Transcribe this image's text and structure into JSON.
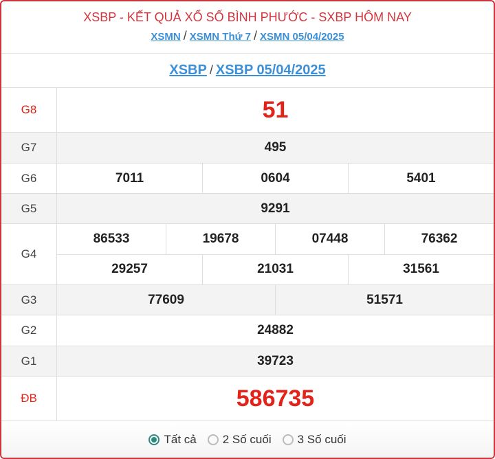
{
  "header": {
    "title": "XSBP - KẾT QUẢ XỔ SỐ BÌNH PHƯỚC - SXBP HÔM NAY",
    "breadcrumbs": [
      "XSMN",
      "XSMN Thứ 7",
      "XSMN 05/04/2025"
    ],
    "separator": "/"
  },
  "subheader": {
    "links": [
      "XSBP",
      "XSBP 05/04/2025"
    ],
    "separator": "/"
  },
  "prizes": [
    {
      "label": "G8",
      "lines": [
        [
          "51"
        ]
      ]
    },
    {
      "label": "G7",
      "lines": [
        [
          "495"
        ]
      ]
    },
    {
      "label": "G6",
      "lines": [
        [
          "7011",
          "0604",
          "5401"
        ]
      ]
    },
    {
      "label": "G5",
      "lines": [
        [
          "9291"
        ]
      ]
    },
    {
      "label": "G4",
      "lines": [
        [
          "86533",
          "19678",
          "07448",
          "76362"
        ],
        [
          "29257",
          "21031",
          "31561"
        ]
      ]
    },
    {
      "label": "G3",
      "lines": [
        [
          "77609",
          "51571"
        ]
      ]
    },
    {
      "label": "G2",
      "lines": [
        [
          "24882"
        ]
      ]
    },
    {
      "label": "G1",
      "lines": [
        [
          "39723"
        ]
      ]
    },
    {
      "label": "ĐB",
      "lines": [
        [
          "586735"
        ]
      ]
    }
  ],
  "filter": {
    "options": [
      "Tất cả",
      "2 Số cuối",
      "3 Số cuối"
    ],
    "selected": "Tất cả"
  },
  "colors": {
    "accent": "#d0363e",
    "link": "#3d8fd6",
    "highlight": "#e2231a",
    "radio": "#2e8a80"
  }
}
